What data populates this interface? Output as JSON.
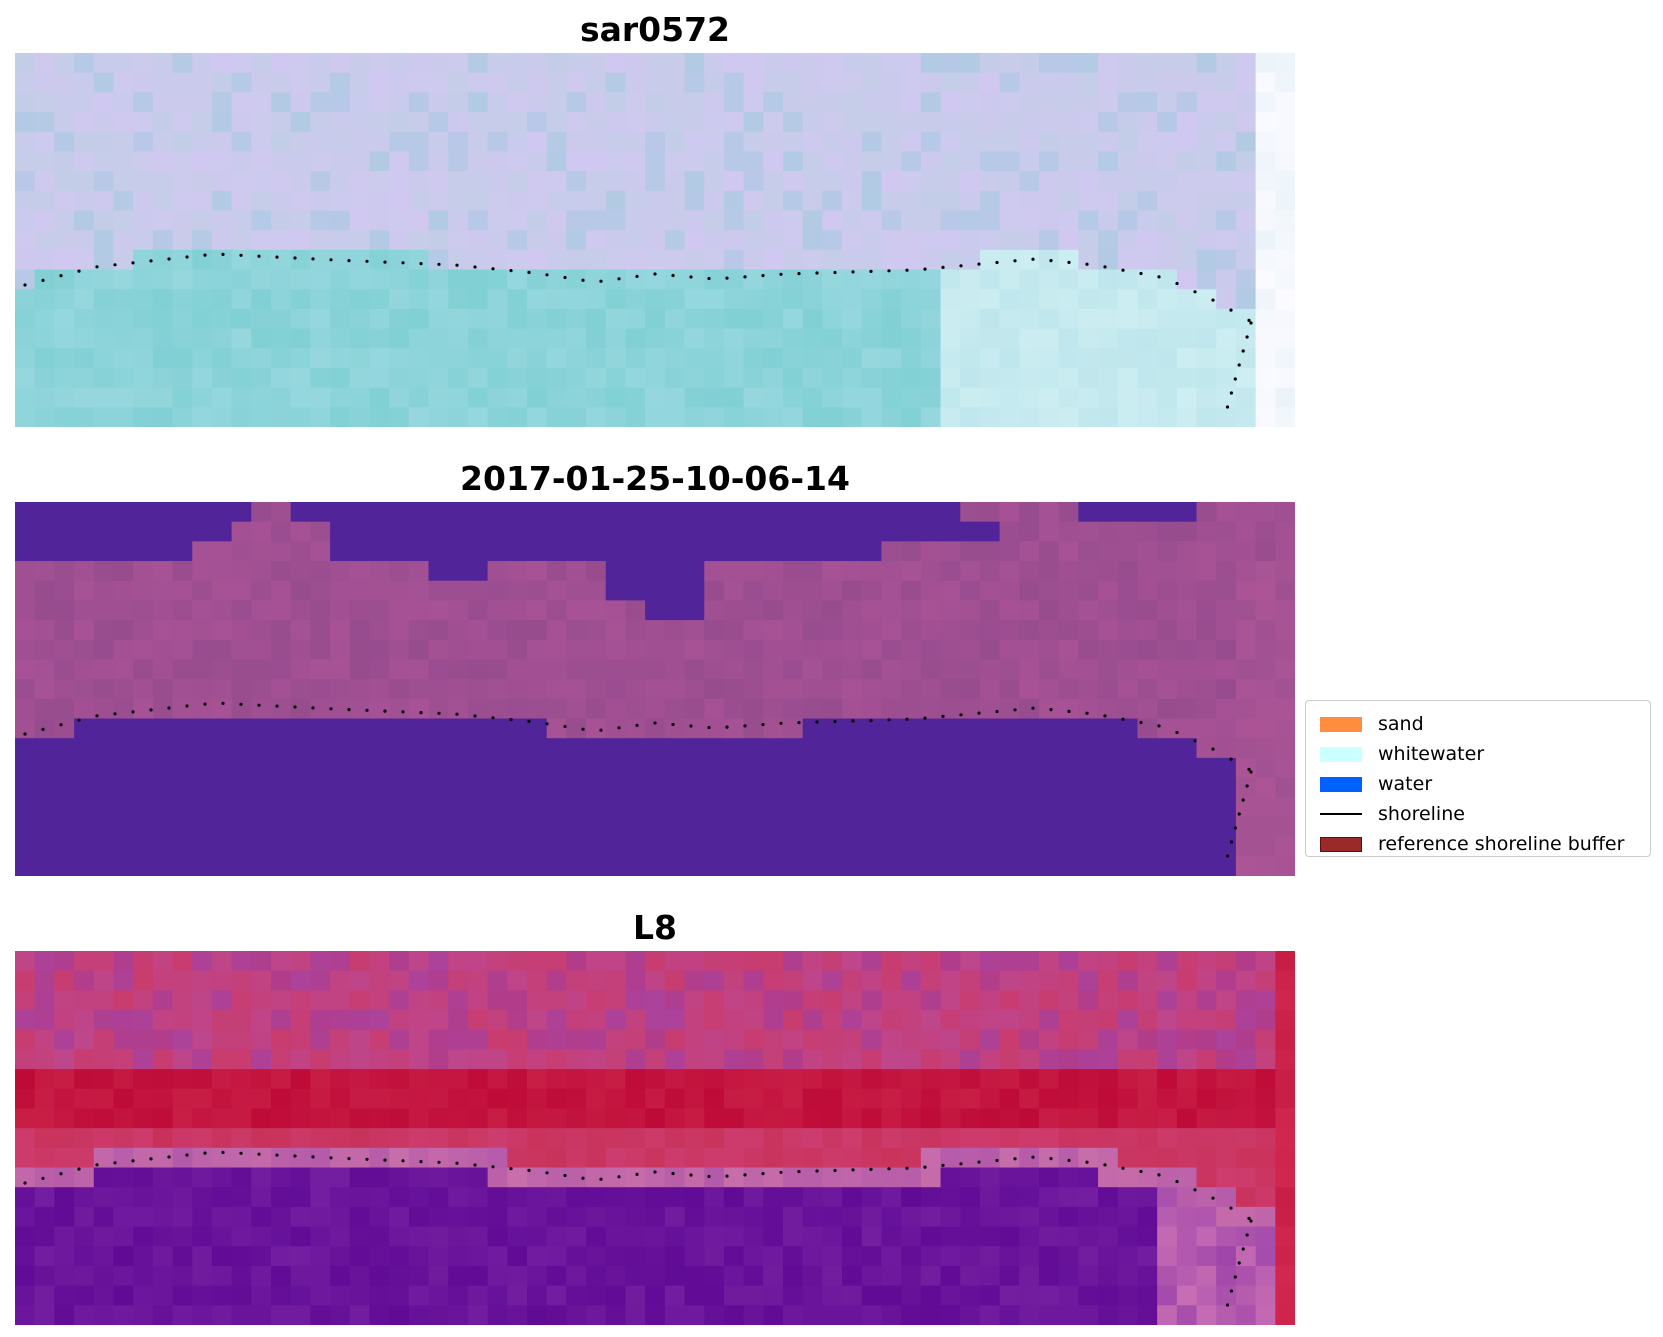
{
  "panels": [
    {
      "title": "sar0572",
      "palette": "sar"
    },
    {
      "title": "2017-01-25-10-06-14",
      "palette": "classified"
    },
    {
      "title": "L8",
      "palette": "l8"
    }
  ],
  "legend": {
    "items": [
      {
        "label": "sand",
        "color": "#ff8c3f",
        "kind": "patch"
      },
      {
        "label": "whitewater",
        "color": "#ccffff",
        "kind": "patch"
      },
      {
        "label": "water",
        "color": "#0061ff",
        "kind": "patch"
      },
      {
        "label": "shoreline",
        "color": "#000000",
        "kind": "line"
      },
      {
        "label": "reference shoreline buffer",
        "color": "#9a2a2a",
        "kind": "patch-border"
      }
    ]
  }
}
